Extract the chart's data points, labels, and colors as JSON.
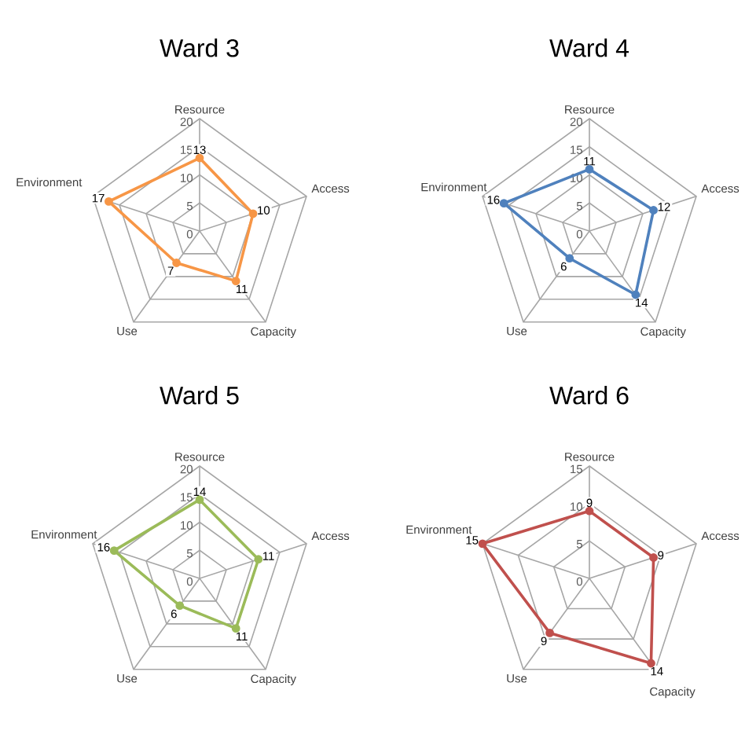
{
  "chart_data": [
    {
      "type": "radar",
      "title": "Ward 3",
      "categories": [
        "Resource",
        "Access",
        "Capacity",
        "Use",
        "Environment"
      ],
      "series": [
        {
          "color": "#f79646",
          "values": [
            13,
            10,
            11,
            7,
            17
          ]
        }
      ],
      "ylim": [
        0,
        20
      ],
      "yticks": [
        0,
        5,
        10,
        15,
        20
      ],
      "grid": true,
      "marker": "circle",
      "data_labels": true
    },
    {
      "type": "radar",
      "title": "Ward 4",
      "categories": [
        "Resource",
        "Access",
        "Capacity",
        "Use",
        "Environment"
      ],
      "series": [
        {
          "color": "#4f81bd",
          "values": [
            11,
            12,
            14,
            6,
            16
          ]
        }
      ],
      "ylim": [
        0,
        20
      ],
      "yticks": [
        0,
        5,
        10,
        15,
        20
      ],
      "grid": true,
      "marker": "circle",
      "data_labels": true
    },
    {
      "type": "radar",
      "title": "Ward 5",
      "categories": [
        "Resource",
        "Access",
        "Capacity",
        "Use",
        "Environment"
      ],
      "series": [
        {
          "color": "#9bbb59",
          "values": [
            14,
            11,
            11,
            6,
            16
          ]
        }
      ],
      "ylim": [
        0,
        20
      ],
      "yticks": [
        0,
        5,
        10,
        15,
        20
      ],
      "grid": true,
      "marker": "circle",
      "data_labels": true
    },
    {
      "type": "radar",
      "title": "Ward 6",
      "categories": [
        "Resource",
        "Access",
        "Capacity",
        "Use",
        "Environment"
      ],
      "series": [
        {
          "color": "#c0504d",
          "values": [
            9,
            9,
            14,
            9,
            15
          ]
        }
      ],
      "ylim": [
        0,
        15
      ],
      "yticks": [
        0,
        5,
        10,
        15
      ],
      "grid": true,
      "marker": "circle",
      "data_labels": true
    }
  ]
}
